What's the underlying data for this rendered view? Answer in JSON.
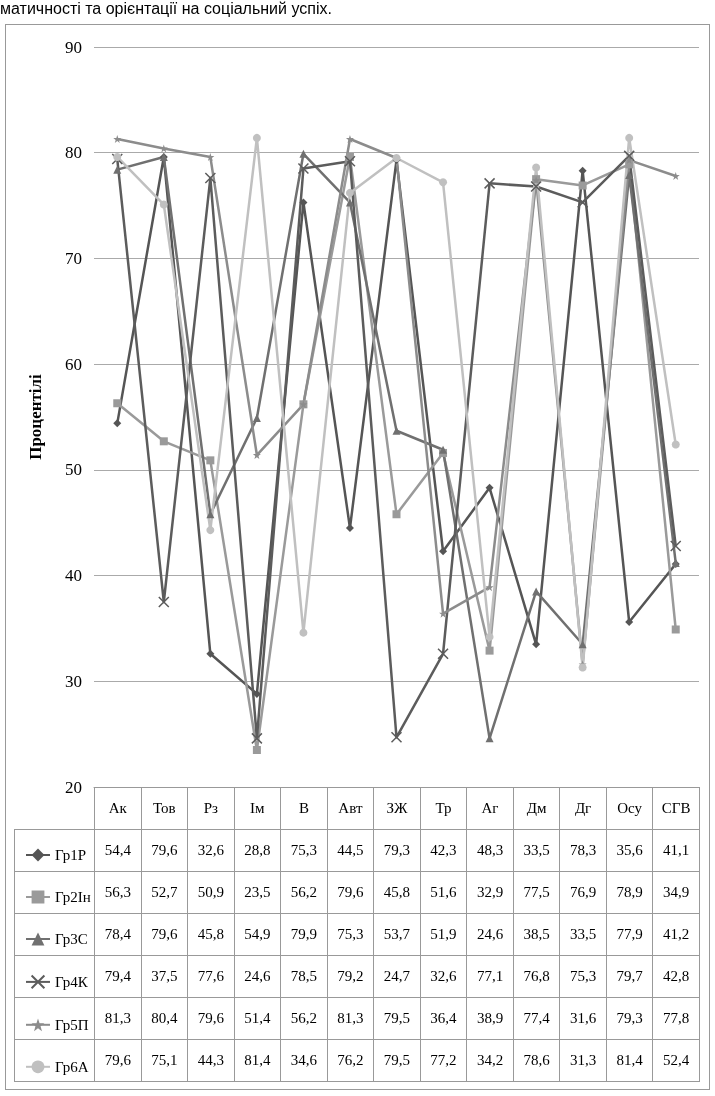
{
  "chart_data": {
    "type": "line",
    "ylabel": "Процентілі",
    "annotations": [
      "матичності та орієнтації на соціальний успіх."
    ],
    "categories": [
      "Ак",
      "Тов",
      "Рз",
      "Ім",
      "В",
      "Авт",
      "ЗЖ",
      "Тр",
      "Аг",
      "Дм",
      "Дг",
      "Осу",
      "СГВ"
    ],
    "ylim": [
      20,
      90
    ],
    "yticks": [
      20,
      30,
      40,
      50,
      60,
      70,
      80,
      90
    ],
    "grid": "y",
    "legend": "bottom",
    "series": [
      {
        "name": "Гр1Р",
        "color": "#555555",
        "marker": "diamond",
        "values": [
          54.4,
          79.6,
          32.6,
          28.8,
          75.3,
          44.5,
          79.3,
          42.3,
          48.3,
          33.5,
          78.3,
          35.6,
          41.1
        ],
        "value_labels": [
          "54,4",
          "79,6",
          "32,6",
          "28,8",
          "75,3",
          "44,5",
          "79,3",
          "42,3",
          "48,3",
          "33,5",
          "78,3",
          "35,6",
          "41,1"
        ]
      },
      {
        "name": "Гр2Ін",
        "color": "#9a9a9a",
        "marker": "square",
        "values": [
          56.3,
          52.7,
          50.9,
          23.5,
          56.2,
          79.6,
          45.8,
          51.6,
          32.9,
          77.5,
          76.9,
          78.9,
          34.9
        ],
        "value_labels": [
          "56,3",
          "52,7",
          "50,9",
          "23,5",
          "56,2",
          "79,6",
          "45,8",
          "51,6",
          "32,9",
          "77,5",
          "76,9",
          "78,9",
          "34,9"
        ]
      },
      {
        "name": "Гр3С",
        "color": "#707070",
        "marker": "triangle",
        "values": [
          78.4,
          79.6,
          45.8,
          54.9,
          79.9,
          75.3,
          53.7,
          51.9,
          24.6,
          38.5,
          33.5,
          77.9,
          41.2
        ],
        "value_labels": [
          "78,4",
          "79,6",
          "45,8",
          "54,9",
          "79,9",
          "75,3",
          "53,7",
          "51,9",
          "24,6",
          "38,5",
          "33,5",
          "77,9",
          "41,2"
        ]
      },
      {
        "name": "Гр4К",
        "color": "#5c5c5c",
        "marker": "cross",
        "values": [
          79.4,
          37.5,
          77.6,
          24.6,
          78.5,
          79.2,
          24.7,
          32.6,
          77.1,
          76.8,
          75.3,
          79.7,
          42.8
        ],
        "value_labels": [
          "79,4",
          "37,5",
          "77,6",
          "24,6",
          "78,5",
          "79,2",
          "24,7",
          "32,6",
          "77,1",
          "76,8",
          "75,3",
          "79,7",
          "42,8"
        ]
      },
      {
        "name": "Гр5П",
        "color": "#8c8c8c",
        "marker": "star",
        "values": [
          81.3,
          80.4,
          79.6,
          51.4,
          56.2,
          81.3,
          79.5,
          36.4,
          38.9,
          77.4,
          31.6,
          79.3,
          77.8
        ],
        "value_labels": [
          "81,3",
          "80,4",
          "79,6",
          "51,4",
          "56,2",
          "81,3",
          "79,5",
          "36,4",
          "38,9",
          "77,4",
          "31,6",
          "79,3",
          "77,8"
        ]
      },
      {
        "name": "Гр6А",
        "color": "#c0c0c0",
        "marker": "circle",
        "values": [
          79.6,
          75.1,
          44.3,
          81.4,
          34.6,
          76.2,
          79.5,
          77.2,
          34.2,
          78.6,
          31.3,
          81.4,
          52.4
        ],
        "value_labels": [
          "79,6",
          "75,1",
          "44,3",
          "81,4",
          "34,6",
          "76,2",
          "79,5",
          "77,2",
          "34,2",
          "78,6",
          "31,3",
          "81,4",
          "52,4"
        ]
      }
    ]
  }
}
